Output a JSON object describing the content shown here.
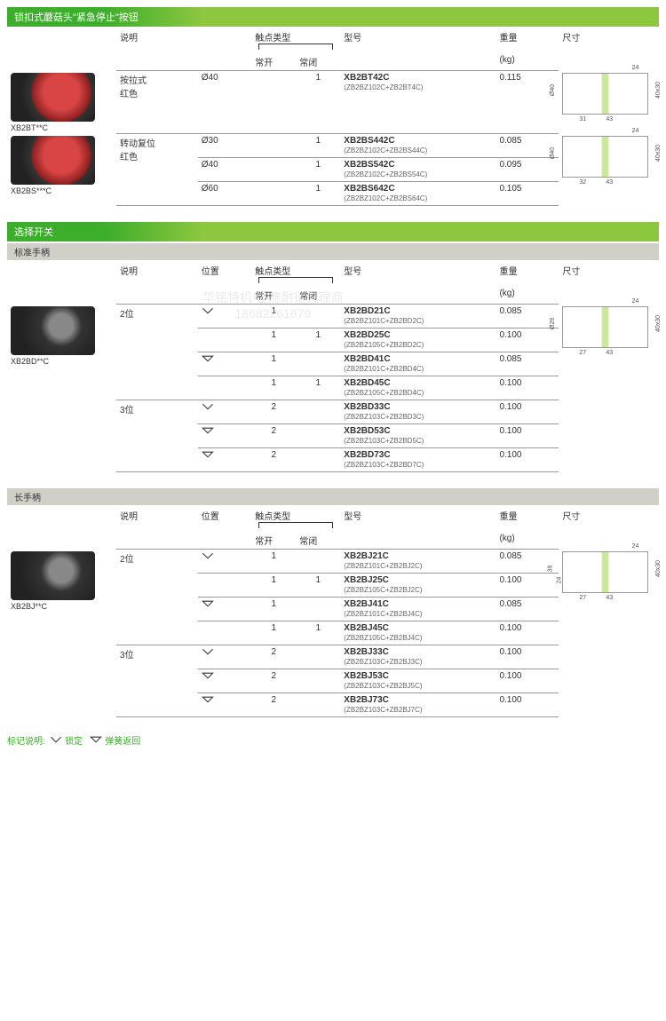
{
  "colors": {
    "header_bg_start": "#3DAE2B",
    "header_bg_end": "#8DC63F",
    "sub_bg": "#d0d0c8",
    "border": "#999999",
    "text": "#333333",
    "sub_text": "#666666",
    "accent_green": "#3DAE2B"
  },
  "column_headers": {
    "desc": "说明",
    "pos": "位置",
    "contact": "触点类型",
    "no": "常开",
    "nc": "常闭",
    "model": "型号",
    "weight": "重量",
    "weight_unit": "(kg)",
    "dim": "尺寸"
  },
  "watermark": {
    "line1": "华铭特机电-施耐德代理商",
    "line2": "18682261879"
  },
  "sections": [
    {
      "title": "锁扣式蘑菇头\"紧急停止\"按钮",
      "has_pos_col": false,
      "groups": [
        {
          "img_label": "XB2BT**C",
          "img_class": "",
          "desc": "按拉式\n红色",
          "dim": {
            "d": "Ø40",
            "a": "31",
            "b": "43",
            "c": "24",
            "h": "40x30"
          },
          "rows": [
            {
              "spec": "Ø40",
              "no": "",
              "nc": "1",
              "model": "XB2BT42C",
              "sub": "(ZB2BZ102C+ZB2BT4C)",
              "weight": "0.115"
            }
          ]
        },
        {
          "img_label": "XB2BS***C",
          "img_class": "",
          "desc": "转动复位\n红色",
          "dim": {
            "d": "Ø40",
            "a": "32",
            "b": "43",
            "c": "24",
            "h": "40x30"
          },
          "rows": [
            {
              "spec": "Ø30",
              "no": "",
              "nc": "1",
              "model": "XB2BS442C",
              "sub": "(ZB2BZ102C+ZB2BS44C)",
              "weight": "0.085"
            },
            {
              "spec": "Ø40",
              "no": "",
              "nc": "1",
              "model": "XB2BS542C",
              "sub": "(ZB2BZ102C+ZB2BS54C)",
              "weight": "0.095"
            },
            {
              "spec": "Ø60",
              "no": "",
              "nc": "1",
              "model": "XB2BS642C",
              "sub": "(ZB2BZ102C+ZB2BS64C)",
              "weight": "0.105"
            }
          ]
        }
      ]
    },
    {
      "title": "选择开关",
      "subtitle": "标准手柄",
      "has_pos_col": true,
      "groups": [
        {
          "img_label": "XB2BD**C",
          "img_class": "sel",
          "desc": "2位",
          "dim": {
            "d": "Ø29",
            "a": "27",
            "b": "43",
            "c": "24",
            "h": "40x30"
          },
          "rows": [
            {
              "pos_icon": "v",
              "no": "1",
              "nc": "",
              "model": "XB2BD21C",
              "sub": "(ZB2BZ101C+ZB2BD2C)",
              "weight": "0.085"
            },
            {
              "pos_icon": "",
              "no": "1",
              "nc": "1",
              "model": "XB2BD25C",
              "sub": "(ZB2BZ105C+ZB2BD2C)",
              "weight": "0.100"
            },
            {
              "pos_icon": "vo",
              "no": "1",
              "nc": "",
              "model": "XB2BD41C",
              "sub": "(ZB2BZ101C+ZB2BD4C)",
              "weight": "0.085"
            },
            {
              "pos_icon": "",
              "no": "1",
              "nc": "1",
              "model": "XB2BD45C",
              "sub": "(ZB2BZ105C+ZB2BD4C)",
              "weight": "0.100"
            }
          ]
        },
        {
          "desc": "3位",
          "rows": [
            {
              "pos_icon": "v",
              "no": "2",
              "nc": "",
              "model": "XB2BD33C",
              "sub": "(ZB2BZ103C+ZB2BD3C)",
              "weight": "0.100"
            },
            {
              "pos_icon": "vo",
              "no": "2",
              "nc": "",
              "model": "XB2BD53C",
              "sub": "(ZB2BZ103C+ZB2BD5C)",
              "weight": "0.100"
            },
            {
              "pos_icon": "vo",
              "no": "2",
              "nc": "",
              "model": "XB2BD73C",
              "sub": "(ZB2BZ103C+ZB2BD7C)",
              "weight": "0.100"
            }
          ]
        }
      ]
    },
    {
      "subtitle": "长手柄",
      "has_pos_col": true,
      "groups": [
        {
          "img_label": "XB2BJ**C",
          "img_class": "sel",
          "desc": "2位",
          "dim": {
            "d": "39",
            "d2": "24",
            "a": "27",
            "b": "43",
            "c": "24",
            "h": "40x30"
          },
          "rows": [
            {
              "pos_icon": "v",
              "no": "1",
              "nc": "",
              "model": "XB2BJ21C",
              "sub": "(ZB2BZ101C+ZB2BJ2C)",
              "weight": "0.085"
            },
            {
              "pos_icon": "",
              "no": "1",
              "nc": "1",
              "model": "XB2BJ25C",
              "sub": "(ZB2BZ105C+ZB2BJ2C)",
              "weight": "0.100"
            },
            {
              "pos_icon": "vo",
              "no": "1",
              "nc": "",
              "model": "XB2BJ41C",
              "sub": "(ZB2BZ101C+ZB2BJ4C)",
              "weight": "0.085"
            },
            {
              "pos_icon": "",
              "no": "1",
              "nc": "1",
              "model": "XB2BJ45C",
              "sub": "(ZB2BZ105C+ZB2BJ4C)",
              "weight": "0.100"
            }
          ]
        },
        {
          "desc": "3位",
          "rows": [
            {
              "pos_icon": "v",
              "no": "2",
              "nc": "",
              "model": "XB2BJ33C",
              "sub": "(ZB2BZ103C+ZB2BJ3C)",
              "weight": "0.100"
            },
            {
              "pos_icon": "vo",
              "no": "2",
              "nc": "",
              "model": "XB2BJ53C",
              "sub": "(ZB2BZ103C+ZB2BJ5C)",
              "weight": "0.100"
            },
            {
              "pos_icon": "vo",
              "no": "2",
              "nc": "",
              "model": "XB2BJ73C",
              "sub": "(ZB2BZ103C+ZB2BJ7C)",
              "weight": "0.100"
            }
          ]
        }
      ]
    }
  ],
  "legend": {
    "label": "标记说明:",
    "lock_icon": "v",
    "lock_text": "锁定",
    "spring_icon": "vo",
    "spring_text": "弹簧返回"
  }
}
